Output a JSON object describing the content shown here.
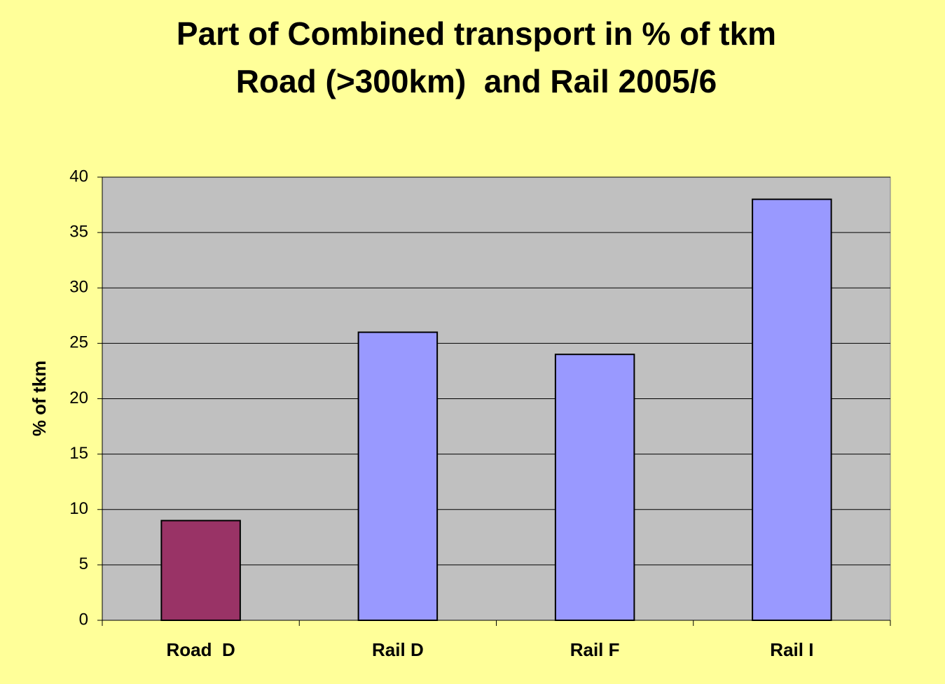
{
  "chart_data": {
    "type": "bar",
    "title": "Part of Combined transport in % of tkm",
    "subtitle": "Road (>300km)  and Rail 2005/6",
    "y_label": "% of tkm",
    "categories": [
      "Road  D",
      "Rail D",
      "Rail F",
      "Rail I"
    ],
    "values": [
      9,
      26,
      24,
      38
    ],
    "colors": [
      "#993366",
      "#9999ff",
      "#9999ff",
      "#9999ff"
    ],
    "ylim": [
      0,
      40
    ],
    "yticks": [
      0,
      5,
      10,
      15,
      20,
      25,
      30,
      35,
      40
    ],
    "grid": true
  }
}
